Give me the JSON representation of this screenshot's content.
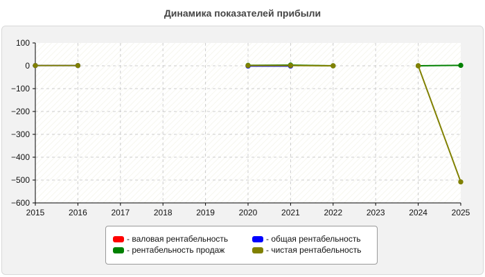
{
  "chart_data": {
    "type": "line",
    "title": "Динамика показателей прибыли",
    "xlabel": "",
    "ylabel": "",
    "x": [
      2015,
      2016,
      2017,
      2018,
      2019,
      2020,
      2021,
      2022,
      2023,
      2024,
      2025
    ],
    "xlim": [
      2015,
      2025
    ],
    "ylim": [
      -600,
      100
    ],
    "yticks": [
      100,
      0,
      -100,
      -200,
      -300,
      -400,
      -500,
      -600
    ],
    "grid": true,
    "legend_position": "bottom",
    "series": [
      {
        "name": "- валовая рентабельность",
        "color": "#ff0000",
        "points": []
      },
      {
        "name": "- общая рентабельность",
        "color": "#0000ff",
        "points": [
          [
            2015,
            1
          ],
          [
            2016,
            1
          ],
          [
            2020,
            -1
          ],
          [
            2021,
            -1
          ]
        ]
      },
      {
        "name": "- рентабельность продаж",
        "color": "#008000",
        "points": [
          [
            2020,
            2
          ],
          [
            2021,
            3
          ],
          [
            2022,
            0
          ],
          [
            2024,
            0
          ],
          [
            2025,
            2
          ]
        ]
      },
      {
        "name": "- чистая рентабельность",
        "color": "#808000",
        "points": [
          [
            2015,
            1
          ],
          [
            2016,
            1
          ],
          [
            2020,
            1
          ],
          [
            2021,
            1
          ],
          [
            2022,
            0
          ],
          [
            2024,
            0
          ],
          [
            2025,
            -508
          ]
        ]
      }
    ]
  }
}
